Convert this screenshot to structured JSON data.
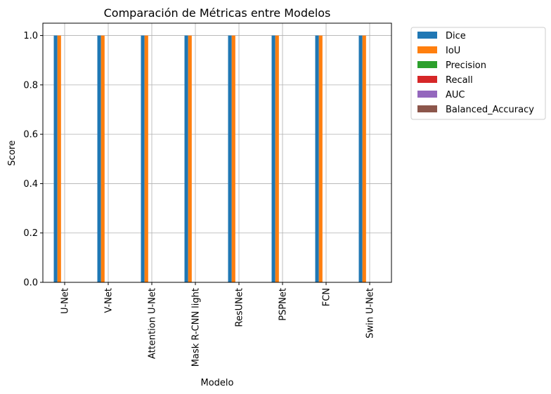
{
  "chart_data": {
    "type": "bar",
    "title": "Comparación de Métricas entre Modelos",
    "xlabel": "Modelo",
    "ylabel": "Score",
    "ylim": [
      0,
      1.05
    ],
    "yticks": [
      0.0,
      0.2,
      0.4,
      0.6,
      0.8,
      1.0
    ],
    "ytick_labels": [
      "0.0",
      "0.2",
      "0.4",
      "0.6",
      "0.8",
      "1.0"
    ],
    "grid": true,
    "legend_position": "outside-top-right",
    "categories": [
      "U-Net",
      "V-Net",
      "Attention U-Net",
      "Mask R-CNN light",
      "ResUNet",
      "PSPNet",
      "FCN",
      "Swin U-Net"
    ],
    "series": [
      {
        "name": "Dice",
        "color": "#1f77b4",
        "values": [
          1.0,
          1.0,
          1.0,
          1.0,
          1.0,
          1.0,
          1.0,
          1.0
        ]
      },
      {
        "name": "IoU",
        "color": "#ff7f0e",
        "values": [
          1.0,
          1.0,
          1.0,
          1.0,
          1.0,
          1.0,
          1.0,
          1.0
        ]
      },
      {
        "name": "Precision",
        "color": "#2ca02c",
        "values": [
          0,
          0,
          0,
          0,
          0,
          0,
          0,
          0
        ]
      },
      {
        "name": "Recall",
        "color": "#d62728",
        "values": [
          0,
          0,
          0,
          0,
          0,
          0,
          0,
          0
        ]
      },
      {
        "name": "AUC",
        "color": "#9467bd",
        "values": [
          0,
          0,
          0,
          0,
          0,
          0,
          0,
          0
        ]
      },
      {
        "name": "Balanced_Accuracy",
        "color": "#8c564b",
        "values": [
          0,
          0,
          0,
          0,
          0,
          0,
          0,
          0
        ]
      }
    ]
  }
}
